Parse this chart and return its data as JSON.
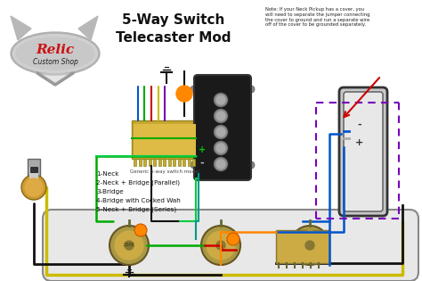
{
  "title_line1": "5-Way Switch",
  "title_line2": "Telecaster Mod",
  "note_text": "Note: If your Neck Pickup has a cover, you\nwill need to separate the jumper connecting\nthe cover to ground and run a separate wire\noff of the cover to be grounded separately.",
  "switch_label": "Generic 5-way switch model",
  "positions": [
    "1-Neck",
    "2-Neck + Bridge (Parallel)",
    "3-Bridge",
    "4-Bridge with Cocked Wah",
    "5-Neck + Bridge (Series)"
  ],
  "bg_color": "#ffffff",
  "title_color": "#111111",
  "green": "#00aa00",
  "yellow": "#ccbb00",
  "blue": "#0055cc",
  "red": "#cc0000",
  "black": "#111111",
  "orange": "#ff8800",
  "purple": "#7700bb",
  "gray": "#888888",
  "green2": "#00cc44",
  "teal": "#009988"
}
